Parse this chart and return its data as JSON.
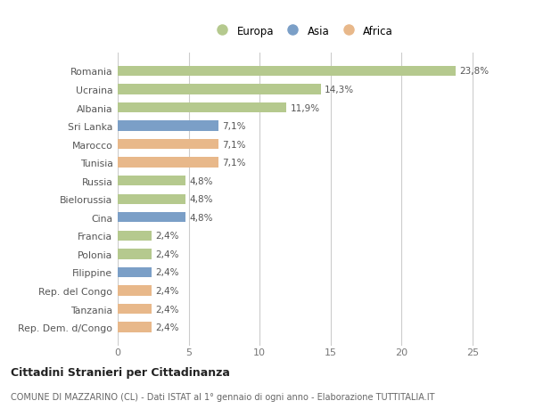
{
  "categories": [
    "Romania",
    "Ucraina",
    "Albania",
    "Sri Lanka",
    "Marocco",
    "Tunisia",
    "Russia",
    "Bielorussia",
    "Cina",
    "Francia",
    "Polonia",
    "Filippine",
    "Rep. del Congo",
    "Tanzania",
    "Rep. Dem. d/Congo"
  ],
  "values": [
    23.8,
    14.3,
    11.9,
    7.1,
    7.1,
    7.1,
    4.8,
    4.8,
    4.8,
    2.4,
    2.4,
    2.4,
    2.4,
    2.4,
    2.4
  ],
  "labels": [
    "23,8%",
    "14,3%",
    "11,9%",
    "7,1%",
    "7,1%",
    "7,1%",
    "4,8%",
    "4,8%",
    "4,8%",
    "2,4%",
    "2,4%",
    "2,4%",
    "2,4%",
    "2,4%",
    "2,4%"
  ],
  "continents": [
    "Europa",
    "Europa",
    "Europa",
    "Asia",
    "Africa",
    "Africa",
    "Europa",
    "Europa",
    "Asia",
    "Europa",
    "Europa",
    "Asia",
    "Africa",
    "Africa",
    "Africa"
  ],
  "colors": {
    "Europa": "#b5c98e",
    "Asia": "#7b9fc7",
    "Africa": "#e8b88a"
  },
  "legend_order": [
    "Europa",
    "Asia",
    "Africa"
  ],
  "title": "Cittadini Stranieri per Cittadinanza",
  "subtitle": "COMUNE DI MAZZARINO (CL) - Dati ISTAT al 1° gennaio di ogni anno - Elaborazione TUTTITALIA.IT",
  "xlim": [
    0,
    26
  ],
  "xticks": [
    0,
    5,
    10,
    15,
    20,
    25
  ],
  "background_color": "#ffffff",
  "plot_bg": "#ffffff"
}
